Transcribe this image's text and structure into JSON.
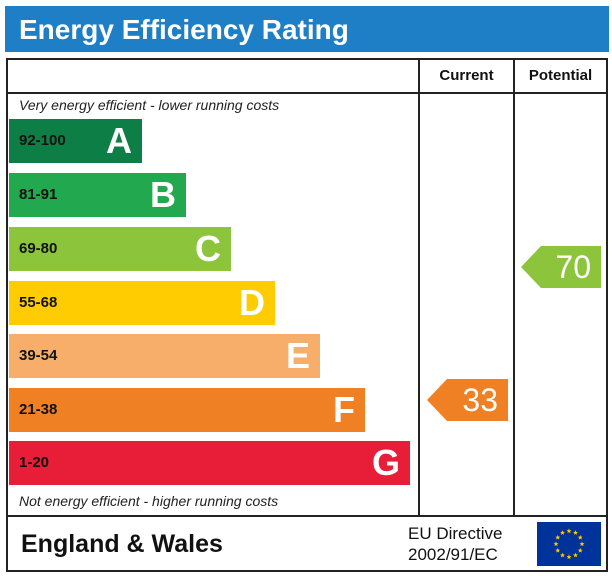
{
  "title": "Energy Efficiency Rating",
  "columns": {
    "current": "Current",
    "potential": "Potential"
  },
  "top_caption": "Very energy efficient - lower running costs",
  "bottom_caption": "Not energy efficient - higher running costs",
  "bands": [
    {
      "range": "92-100",
      "letter": "A",
      "color": "#0d7f46"
    },
    {
      "range": "81-91",
      "letter": "B",
      "color": "#22a84f"
    },
    {
      "range": "69-80",
      "letter": "C",
      "color": "#8cc43c"
    },
    {
      "range": "55-68",
      "letter": "D",
      "color": "#ffcc02"
    },
    {
      "range": "39-54",
      "letter": "E",
      "color": "#f6ae6a"
    },
    {
      "range": "21-38",
      "letter": "F",
      "color": "#ef8023"
    },
    {
      "range": "1-20",
      "letter": "G",
      "color": "#e81d38"
    }
  ],
  "ratings": {
    "current": {
      "value": "33",
      "color": "#ef8023"
    },
    "potential": {
      "value": "70",
      "color": "#8cc43c"
    }
  },
  "footer": {
    "region": "England & Wales",
    "directive_line1": "EU Directive",
    "directive_line2": "2002/91/EC",
    "flag_color": "#003399",
    "star_color": "#ffcc00"
  }
}
